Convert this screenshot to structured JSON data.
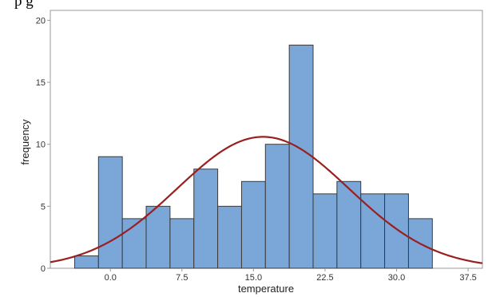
{
  "header_fragment": "p                                                           g",
  "colors": {
    "bar_fill": "#7aa6d8",
    "bar_stroke": "#3b3b3b",
    "curve": "#9a1f1f",
    "frame": "#9a9a9a",
    "background": "#ffffff"
  },
  "chart_data": {
    "type": "bar",
    "xlabel": "temperature",
    "ylabel": "frequency",
    "x_ticks": [
      0.0,
      7.5,
      15.0,
      22.5,
      30.0,
      37.5
    ],
    "x_tick_labels": [
      "0.0",
      "7.5",
      "15.0",
      "22.5",
      "30.0",
      "37.5"
    ],
    "y_ticks": [
      0,
      5,
      10,
      15,
      20
    ],
    "y_tick_labels": [
      "0",
      "5",
      "10",
      "15",
      "20"
    ],
    "xlim": [
      -6.3,
      39.0
    ],
    "ylim": [
      0,
      20.8
    ],
    "bin_width": 2.5,
    "bin_starts": [
      -3.75,
      -1.25,
      1.25,
      3.75,
      6.25,
      8.75,
      11.25,
      13.75,
      16.25,
      18.75,
      21.25,
      23.75,
      26.25,
      28.75,
      31.25
    ],
    "values": [
      1,
      9,
      4,
      5,
      4,
      8,
      5,
      7,
      10,
      18,
      6,
      7,
      6,
      6,
      4
    ],
    "normal_fit": {
      "mean": 16.0,
      "sd": 9.0,
      "peak": 10.6
    },
    "grid": false,
    "legend": "none"
  }
}
